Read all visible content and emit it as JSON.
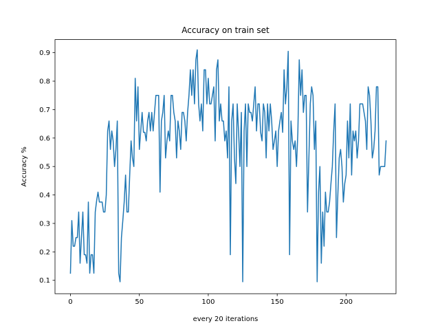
{
  "chart_data": {
    "type": "line",
    "title": "Accuracy on train set",
    "xlabel": "every 20 iterations",
    "ylabel": "Accuracy %",
    "xlim": [
      -11.2,
      236.2
    ],
    "ylim": [
      0.053,
      0.946
    ],
    "xticks": [
      0,
      50,
      100,
      150,
      200
    ],
    "yticks": [
      0.1,
      0.2,
      0.3,
      0.4,
      0.5,
      0.6,
      0.7,
      0.8,
      0.9
    ],
    "xtick_labels": [
      "0",
      "50",
      "100",
      "150",
      "200"
    ],
    "ytick_labels": [
      "0.1",
      "0.2",
      "0.3",
      "0.4",
      "0.5",
      "0.6",
      "0.7",
      "0.8",
      "0.9"
    ],
    "grid": false,
    "series": [
      {
        "color": "#1f77b4",
        "x_start": 0,
        "x_step": 1,
        "values": [
          0.125,
          0.31,
          0.22,
          0.22,
          0.25,
          0.25,
          0.34,
          0.16,
          0.25,
          0.34,
          0.19,
          0.19,
          0.16,
          0.375,
          0.125,
          0.19,
          0.19,
          0.125,
          0.34,
          0.38,
          0.41,
          0.375,
          0.375,
          0.375,
          0.34,
          0.34,
          0.4,
          0.625,
          0.66,
          0.56,
          0.625,
          0.59,
          0.5,
          0.56,
          0.66,
          0.125,
          0.095,
          0.25,
          0.31,
          0.375,
          0.47,
          0.34,
          0.34,
          0.47,
          0.59,
          0.53,
          0.5,
          0.81,
          0.66,
          0.78,
          0.56,
          0.625,
          0.69,
          0.62,
          0.62,
          0.59,
          0.66,
          0.69,
          0.625,
          0.69,
          0.625,
          0.69,
          0.75,
          0.75,
          0.75,
          0.41,
          0.66,
          0.69,
          0.75,
          0.53,
          0.59,
          0.625,
          0.59,
          0.75,
          0.75,
          0.69,
          0.66,
          0.53,
          0.66,
          0.625,
          0.56,
          0.69,
          0.69,
          0.66,
          0.59,
          0.69,
          0.75,
          0.84,
          0.75,
          0.84,
          0.72,
          0.875,
          0.91,
          0.72,
          0.66,
          0.72,
          0.625,
          0.84,
          0.84,
          0.72,
          0.81,
          0.72,
          0.72,
          0.75,
          0.78,
          0.59,
          0.84,
          0.875,
          0.66,
          0.72,
          0.66,
          0.66,
          0.59,
          0.625,
          0.53,
          0.78,
          0.19,
          0.66,
          0.72,
          0.53,
          0.44,
          0.72,
          0.62,
          0.5,
          0.69,
          0.095,
          0.625,
          0.72,
          0.5,
          0.72,
          0.69,
          0.69,
          0.66,
          0.72,
          0.78,
          0.625,
          0.72,
          0.72,
          0.62,
          0.59,
          0.72,
          0.69,
          0.53,
          0.72,
          0.625,
          0.72,
          0.66,
          0.56,
          0.59,
          0.625,
          0.5,
          0.625,
          0.66,
          0.69,
          0.62,
          0.84,
          0.72,
          0.78,
          0.905,
          0.19,
          0.66,
          0.59,
          0.56,
          0.59,
          0.5,
          0.62,
          0.875,
          0.75,
          0.84,
          0.69,
          0.75,
          0.75,
          0.34,
          0.53,
          0.72,
          0.78,
          0.75,
          0.56,
          0.66,
          0.095,
          0.41,
          0.5,
          0.16,
          0.34,
          0.22,
          0.41,
          0.34,
          0.34,
          0.375,
          0.44,
          0.5,
          0.625,
          0.72,
          0.25,
          0.4,
          0.53,
          0.56,
          0.5,
          0.375,
          0.44,
          0.47,
          0.66,
          0.53,
          0.72,
          0.47,
          0.625,
          0.59,
          0.625,
          0.53,
          0.59,
          0.72,
          0.72,
          0.72,
          0.69,
          0.66,
          0.56,
          0.78,
          0.75,
          0.66,
          0.53,
          0.56,
          0.625,
          0.78,
          0.78,
          0.47,
          0.5,
          0.5,
          0.5,
          0.5,
          0.59
        ]
      }
    ]
  }
}
